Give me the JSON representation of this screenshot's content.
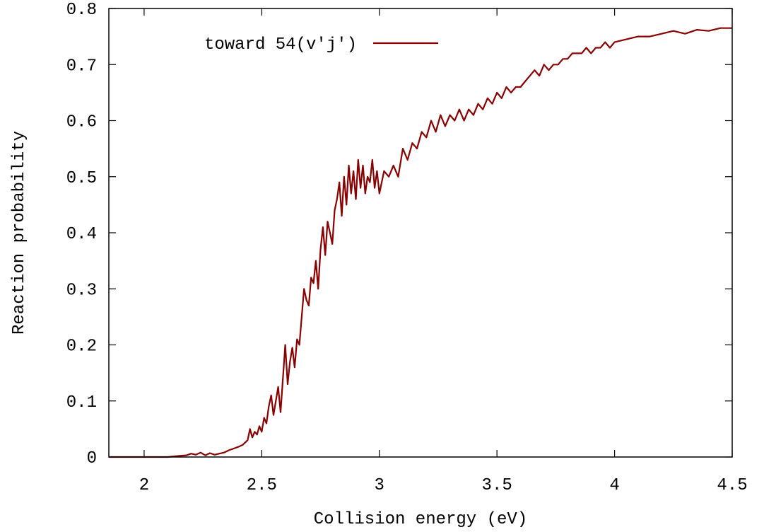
{
  "chart_data": {
    "type": "line",
    "title": "",
    "xlabel": "Collision energy (eV)",
    "ylabel": "Reaction probability",
    "xlim": [
      1.85,
      4.5
    ],
    "ylim": [
      0,
      0.8
    ],
    "x_ticks": [
      2,
      2.5,
      3,
      3.5,
      4,
      4.5
    ],
    "x_tick_labels": [
      "2",
      "2.5",
      "3",
      "3.5",
      "4",
      "4.5"
    ],
    "y_ticks": [
      0,
      0.1,
      0.2,
      0.3,
      0.4,
      0.5,
      0.6,
      0.7,
      0.8
    ],
    "y_tick_labels": [
      "0",
      "0.1",
      "0.2",
      "0.3",
      "0.4",
      "0.5",
      "0.6",
      "0.7",
      "0.8"
    ],
    "grid": false,
    "legend_position": "top-left",
    "colors": {
      "series": "#8b0000",
      "axes": "#000000"
    },
    "series": [
      {
        "name": "toward 54(v'j')",
        "x": [
          1.85,
          1.9,
          1.95,
          2.0,
          2.05,
          2.1,
          2.15,
          2.18,
          2.2,
          2.22,
          2.24,
          2.26,
          2.28,
          2.3,
          2.32,
          2.34,
          2.36,
          2.38,
          2.4,
          2.42,
          2.44,
          2.45,
          2.46,
          2.47,
          2.48,
          2.49,
          2.5,
          2.51,
          2.52,
          2.53,
          2.54,
          2.55,
          2.56,
          2.57,
          2.58,
          2.59,
          2.6,
          2.61,
          2.62,
          2.63,
          2.64,
          2.65,
          2.66,
          2.67,
          2.68,
          2.69,
          2.7,
          2.71,
          2.72,
          2.73,
          2.74,
          2.75,
          2.76,
          2.77,
          2.78,
          2.79,
          2.8,
          2.81,
          2.82,
          2.83,
          2.84,
          2.85,
          2.86,
          2.87,
          2.88,
          2.89,
          2.9,
          2.91,
          2.92,
          2.93,
          2.94,
          2.95,
          2.96,
          2.97,
          2.98,
          2.99,
          3.0,
          3.02,
          3.04,
          3.06,
          3.08,
          3.1,
          3.12,
          3.14,
          3.16,
          3.18,
          3.2,
          3.22,
          3.24,
          3.26,
          3.28,
          3.3,
          3.32,
          3.34,
          3.36,
          3.38,
          3.4,
          3.42,
          3.44,
          3.46,
          3.48,
          3.5,
          3.52,
          3.54,
          3.56,
          3.58,
          3.6,
          3.62,
          3.64,
          3.66,
          3.68,
          3.7,
          3.72,
          3.74,
          3.76,
          3.78,
          3.8,
          3.82,
          3.84,
          3.86,
          3.88,
          3.9,
          3.92,
          3.94,
          3.96,
          3.98,
          4.0,
          4.05,
          4.1,
          4.15,
          4.2,
          4.25,
          4.3,
          4.35,
          4.4,
          4.45,
          4.5
        ],
        "y": [
          0.0,
          0.0,
          0.0,
          0.0,
          0.0,
          0.0,
          0.002,
          0.003,
          0.006,
          0.004,
          0.008,
          0.003,
          0.007,
          0.004,
          0.006,
          0.008,
          0.012,
          0.015,
          0.018,
          0.022,
          0.03,
          0.05,
          0.035,
          0.045,
          0.04,
          0.055,
          0.045,
          0.07,
          0.06,
          0.09,
          0.11,
          0.075,
          0.1,
          0.125,
          0.08,
          0.14,
          0.2,
          0.13,
          0.17,
          0.195,
          0.16,
          0.21,
          0.2,
          0.25,
          0.3,
          0.28,
          0.27,
          0.32,
          0.31,
          0.35,
          0.3,
          0.37,
          0.41,
          0.36,
          0.42,
          0.4,
          0.38,
          0.44,
          0.46,
          0.49,
          0.43,
          0.5,
          0.45,
          0.52,
          0.47,
          0.51,
          0.46,
          0.53,
          0.48,
          0.52,
          0.47,
          0.5,
          0.49,
          0.53,
          0.48,
          0.51,
          0.47,
          0.51,
          0.5,
          0.52,
          0.5,
          0.55,
          0.53,
          0.56,
          0.55,
          0.58,
          0.57,
          0.6,
          0.58,
          0.61,
          0.59,
          0.61,
          0.6,
          0.62,
          0.6,
          0.62,
          0.61,
          0.63,
          0.62,
          0.64,
          0.63,
          0.65,
          0.64,
          0.66,
          0.65,
          0.66,
          0.66,
          0.67,
          0.68,
          0.69,
          0.68,
          0.7,
          0.69,
          0.7,
          0.7,
          0.71,
          0.71,
          0.72,
          0.72,
          0.72,
          0.73,
          0.72,
          0.73,
          0.73,
          0.74,
          0.73,
          0.74,
          0.745,
          0.75,
          0.75,
          0.755,
          0.76,
          0.755,
          0.762,
          0.76,
          0.765,
          0.765
        ]
      }
    ]
  }
}
